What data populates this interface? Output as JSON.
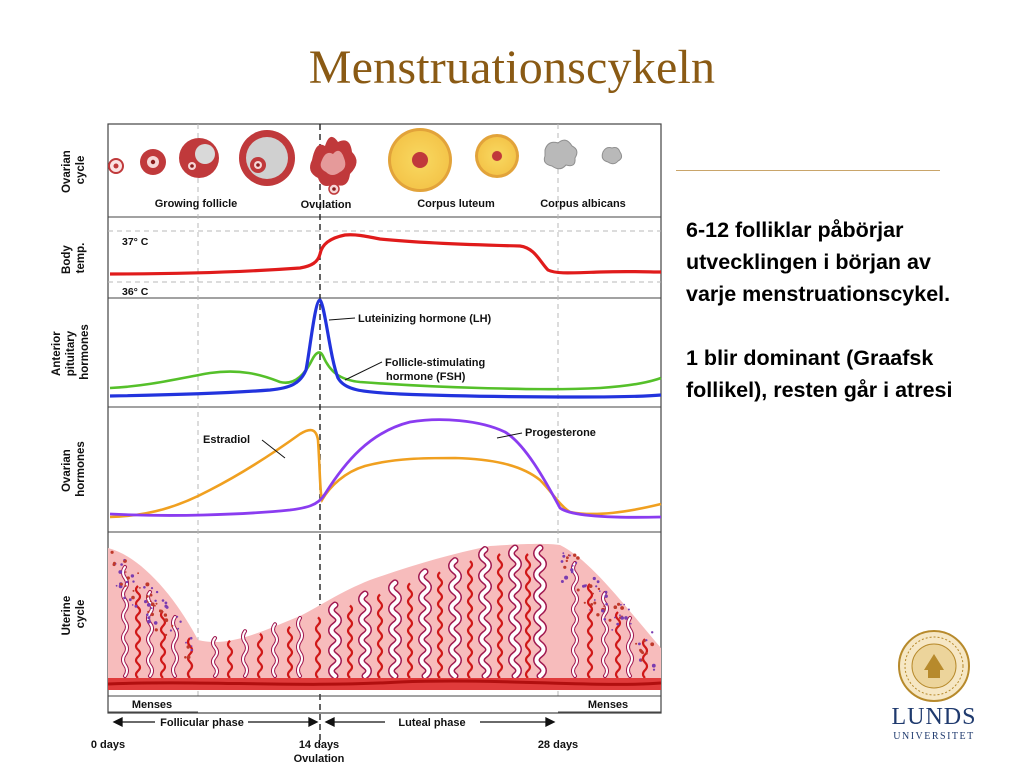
{
  "slide": {
    "title": "Menstruationscykeln",
    "text_block_1": [
      "6-12 folliklar påbörjar",
      "utvecklingen i början av",
      "varje menstruationscykel."
    ],
    "text_block_2": [
      "1 blir dominant (Graafsk",
      "follikel), resten går i atresi"
    ]
  },
  "diagram": {
    "row_labels": {
      "ovarian_cycle": [
        "Ovarian",
        "cycle"
      ],
      "body_temp": [
        "Body",
        "temp."
      ],
      "pituitary": [
        "Anterior",
        "pituitary",
        "hormones"
      ],
      "ovarian_hormones": [
        "Ovarian",
        "hormones"
      ],
      "uterine_cycle": [
        "Uterine",
        "cycle"
      ]
    },
    "ovary_labels": {
      "growing_follicle": "Growing follicle",
      "ovulation": "Ovulation",
      "corpus_luteum": "Corpus luteum",
      "corpus_albicans": "Corpus albicans"
    },
    "temp_labels": {
      "high": "37° C",
      "low": "36° C"
    },
    "hormone_labels": {
      "lh": "Luteinizing hormone (LH)",
      "fsh_1": "Follicle-stimulating",
      "fsh_2": "hormone (FSH)",
      "estradiol": "Estradiol",
      "progesterone": "Progesterone"
    },
    "phase_labels": {
      "menses_left": "Menses",
      "menses_right": "Menses",
      "follicular": "Follicular phase",
      "luteal": "Luteal phase"
    },
    "axis_labels": {
      "day0": "0 days",
      "day14": "14 days",
      "day14_sub": "Ovulation",
      "day28": "28 days"
    },
    "colors": {
      "temp": "#e01b1b",
      "lh": "#2233dd",
      "fsh": "#55c02a",
      "estradiol": "#f0a020",
      "progesterone": "#8a3cf0",
      "endometrium": "#f7bcbc",
      "vessel": "#d01818",
      "gland": "#a01850",
      "follicle": "#c0393b",
      "corpus_luteum": "#f6cf54"
    }
  },
  "logo": {
    "name": "LUNDS",
    "sub": "UNIVERSITET"
  }
}
